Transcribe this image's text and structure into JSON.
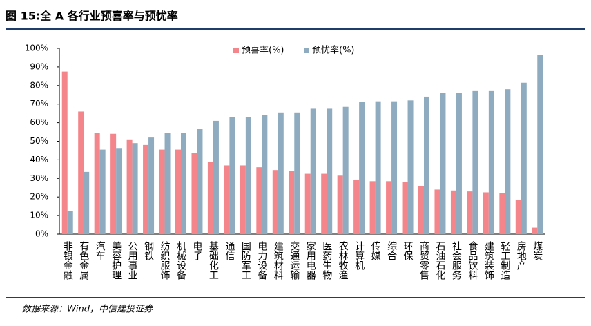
{
  "title": "图 15:全 A 各行业预喜率与预忧率",
  "source": "数据来源：Wind，中信建投证券",
  "chart_data": {
    "type": "bar",
    "categories": [
      "非银金融",
      "有色金属",
      "汽车",
      "美容护理",
      "公用事业",
      "钢铁",
      "纺织服饰",
      "机械设备",
      "电子",
      "基础化工",
      "通信",
      "国防军工",
      "电力设备",
      "建筑材料",
      "交通运输",
      "家用电器",
      "医药生物",
      "农林牧渔",
      "计算机",
      "传媒",
      "综合",
      "环保",
      "商贸零售",
      "石油石化",
      "社会服务",
      "食品饮料",
      "建筑装饰",
      "轻工制造",
      "房地产",
      "煤炭"
    ],
    "series": [
      {
        "name": "预喜率(%)",
        "color": "#f4858a",
        "values": [
          87.5,
          66,
          54.5,
          54,
          51,
          48,
          45.5,
          45.5,
          43.5,
          39,
          37,
          37,
          36,
          34.5,
          34,
          32.5,
          32.5,
          31.5,
          29,
          28.5,
          28.5,
          28,
          26,
          24,
          23.5,
          23,
          22.5,
          22,
          18.5,
          3.5
        ]
      },
      {
        "name": "预忧率(%)",
        "color": "#8eabc0",
        "values": [
          12.5,
          33.5,
          45.5,
          46,
          49,
          52,
          54.5,
          54.5,
          56.5,
          61,
          63,
          63,
          64,
          65.5,
          65.5,
          67.5,
          67.5,
          68.5,
          71,
          71.5,
          71.5,
          72,
          74,
          76,
          76,
          77,
          77,
          78,
          81.5,
          96.5
        ]
      }
    ],
    "ylim": [
      0,
      100
    ],
    "yticks": [
      {
        "value": 0,
        "label": "0%"
      },
      {
        "value": 10,
        "label": "10%"
      },
      {
        "value": 20,
        "label": "20%"
      },
      {
        "value": 30,
        "label": "30%"
      },
      {
        "value": 40,
        "label": "40%"
      },
      {
        "value": 50,
        "label": "50%"
      },
      {
        "value": 60,
        "label": "60%"
      },
      {
        "value": 70,
        "label": "70%"
      },
      {
        "value": 80,
        "label": "80%"
      },
      {
        "value": 90,
        "label": "90%"
      },
      {
        "value": 100,
        "label": "100%"
      }
    ],
    "grid": false,
    "legend": "top"
  }
}
